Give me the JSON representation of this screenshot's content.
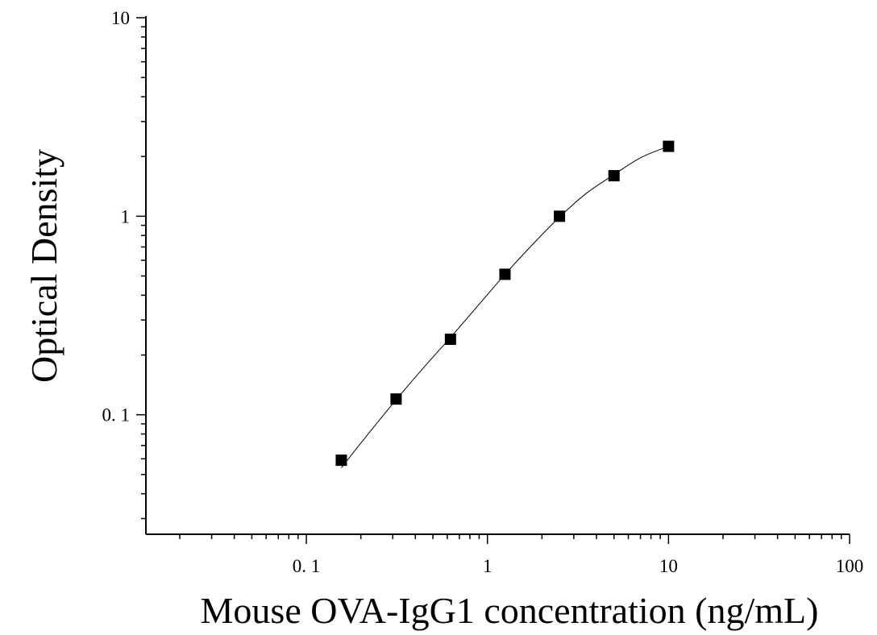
{
  "chart_data": {
    "type": "scatter",
    "xlabel": "Mouse OVA-IgG1 concentration (ng/mL)",
    "ylabel": "Optical Density",
    "x_scale": "log",
    "y_scale": "log",
    "xlim": [
      0.013,
      100
    ],
    "ylim": [
      0.025,
      10
    ],
    "x_tick_labels": [
      {
        "value": 0.1,
        "label": "0. 1"
      },
      {
        "value": 1,
        "label": "1"
      },
      {
        "value": 10,
        "label": "10"
      },
      {
        "value": 100,
        "label": "100"
      }
    ],
    "y_tick_labels": [
      {
        "value": 0.1,
        "label": "0. 1"
      },
      {
        "value": 1,
        "label": "1"
      },
      {
        "value": 10,
        "label": "10"
      }
    ],
    "grid": false,
    "series": [
      {
        "marker": "square",
        "color": "#000000",
        "x": [
          0.156,
          0.313,
          0.625,
          1.25,
          2.5,
          5,
          10
        ],
        "y": [
          0.059,
          0.12,
          0.24,
          0.51,
          1.0,
          1.6,
          2.25
        ]
      }
    ],
    "fit_curve": {
      "color": "#000000",
      "x": [
        0.156,
        0.2,
        0.313,
        0.45,
        0.625,
        0.9,
        1.25,
        1.8,
        2.5,
        3.5,
        5,
        7,
        10
      ],
      "y": [
        0.054,
        0.072,
        0.119,
        0.175,
        0.245,
        0.36,
        0.51,
        0.73,
        0.99,
        1.3,
        1.62,
        1.97,
        2.25
      ]
    }
  }
}
